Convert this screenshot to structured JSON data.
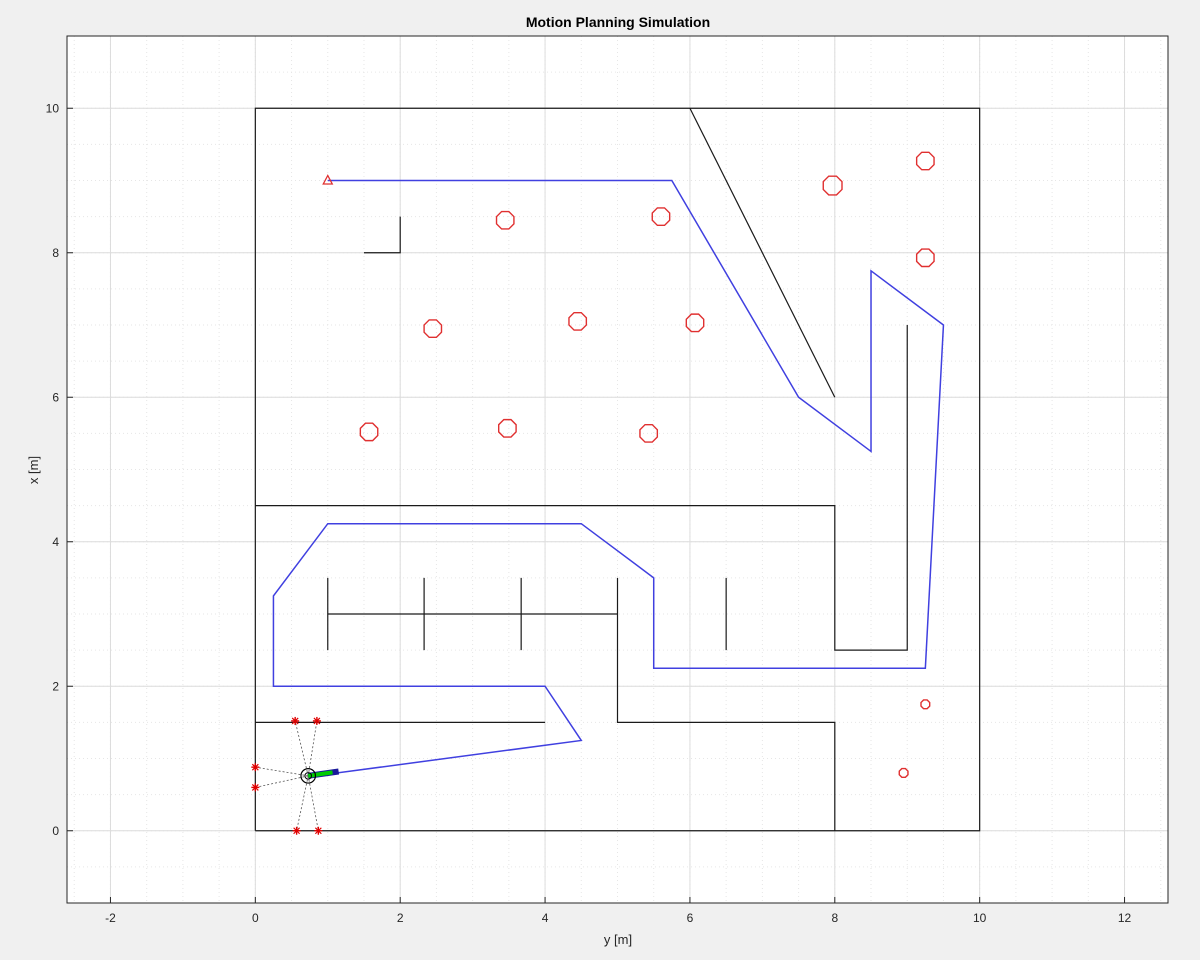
{
  "chart_data": {
    "type": "line",
    "title": "Motion Planning Simulation",
    "xlabel": "y [m]",
    "ylabel": "x [m]",
    "xlim": [
      -2.6,
      12.6
    ],
    "ylim": [
      -1,
      11
    ],
    "xticks": [
      -2,
      0,
      2,
      4,
      6,
      8,
      10,
      12
    ],
    "yticks": [
      0,
      2,
      4,
      6,
      8,
      10
    ],
    "grid": true,
    "minor_grid": true,
    "colors": {
      "walls": "#1a1a1a",
      "path": "#4040e0",
      "obstacles": "#e03030",
      "sensor": "#e00000",
      "robot_heading": "#00cc00"
    },
    "walls": [
      [
        [
          0,
          0
        ],
        [
          10,
          0
        ],
        [
          10,
          10
        ],
        [
          0,
          10
        ],
        [
          0,
          0
        ]
      ],
      [
        [
          6,
          10
        ],
        [
          8,
          6
        ]
      ],
      [
        [
          1.5,
          8
        ],
        [
          2,
          8
        ],
        [
          2,
          8.5
        ]
      ],
      [
        [
          0,
          4.5
        ],
        [
          8,
          4.5
        ],
        [
          8,
          2.5
        ],
        [
          9,
          2.5
        ],
        [
          9,
          7
        ]
      ],
      [
        [
          1,
          3
        ],
        [
          5,
          3
        ]
      ],
      [
        [
          1,
          2.5
        ],
        [
          1,
          3.5
        ]
      ],
      [
        [
          2.33,
          2.5
        ],
        [
          2.33,
          3.5
        ]
      ],
      [
        [
          3.67,
          2.5
        ],
        [
          3.67,
          3.5
        ]
      ],
      [
        [
          5,
          3.5
        ],
        [
          5,
          1.5
        ],
        [
          8,
          1.5
        ],
        [
          8,
          0
        ]
      ],
      [
        [
          6.5,
          2.5
        ],
        [
          6.5,
          3.5
        ]
      ],
      [
        [
          0,
          1.5
        ],
        [
          4,
          1.5
        ]
      ]
    ],
    "path": [
      [
        1,
        9
      ],
      [
        5.75,
        9
      ],
      [
        7.5,
        6
      ],
      [
        8.5,
        5.25
      ],
      [
        8.5,
        7.75
      ],
      [
        9.5,
        7
      ],
      [
        9.25,
        2.25
      ],
      [
        5.5,
        2.25
      ],
      [
        5.5,
        3.5
      ],
      [
        4.5,
        4.25
      ],
      [
        1,
        4.25
      ],
      [
        0.25,
        3.25
      ],
      [
        0.25,
        2
      ],
      [
        4,
        2
      ],
      [
        4.5,
        1.25
      ],
      [
        0.75,
        0.75
      ]
    ],
    "goal": [
      1,
      9
    ],
    "obstacles": [
      {
        "x": 3.45,
        "y": 8.45,
        "r": 0.13
      },
      {
        "x": 5.6,
        "y": 8.5,
        "r": 0.13
      },
      {
        "x": 7.97,
        "y": 8.93,
        "r": 0.14
      },
      {
        "x": 9.25,
        "y": 9.27,
        "r": 0.13
      },
      {
        "x": 9.25,
        "y": 7.93,
        "r": 0.13
      },
      {
        "x": 2.45,
        "y": 6.95,
        "r": 0.13
      },
      {
        "x": 4.45,
        "y": 7.05,
        "r": 0.13
      },
      {
        "x": 6.07,
        "y": 7.03,
        "r": 0.13
      },
      {
        "x": 1.57,
        "y": 5.52,
        "r": 0.13
      },
      {
        "x": 3.48,
        "y": 5.57,
        "r": 0.13
      },
      {
        "x": 5.43,
        "y": 5.5,
        "r": 0.13
      },
      {
        "x": 9.25,
        "y": 1.75,
        "r": 0.065
      },
      {
        "x": 8.95,
        "y": 0.8,
        "r": 0.065
      }
    ],
    "robot": {
      "x": 0.73,
      "y": 0.76,
      "r": 0.1,
      "heading_to": [
        1.15,
        0.82
      ]
    },
    "sensor_hits": [
      [
        0.55,
        1.52
      ],
      [
        0.85,
        1.52
      ],
      [
        0,
        0.88
      ],
      [
        0,
        0.6
      ],
      [
        0.57,
        0
      ],
      [
        0.87,
        0
      ]
    ]
  }
}
